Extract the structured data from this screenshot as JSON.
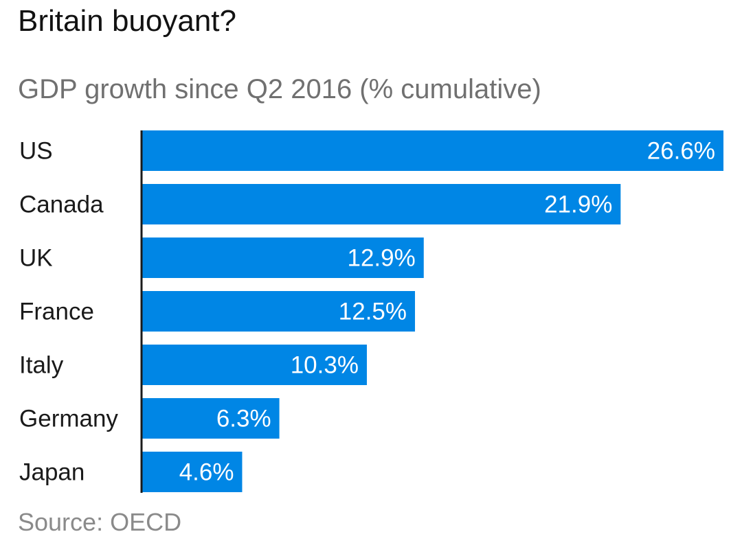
{
  "chart_data": {
    "type": "bar",
    "orientation": "horizontal",
    "title": "Britain buoyant?",
    "subtitle": "GDP growth since Q2 2016 (% cumulative)",
    "categories": [
      "US",
      "Canada",
      "UK",
      "France",
      "Italy",
      "Germany",
      "Japan"
    ],
    "values": [
      26.6,
      21.9,
      12.9,
      12.5,
      10.3,
      6.3,
      4.6
    ],
    "data_labels": [
      "26.6%",
      "21.9%",
      "12.9%",
      "12.5%",
      "10.3%",
      "6.3%",
      "4.6%"
    ],
    "xlim": [
      0,
      26.6
    ],
    "grid": false,
    "legend": "none",
    "bar_color": "#0086e5",
    "source": "Source: OECD"
  }
}
